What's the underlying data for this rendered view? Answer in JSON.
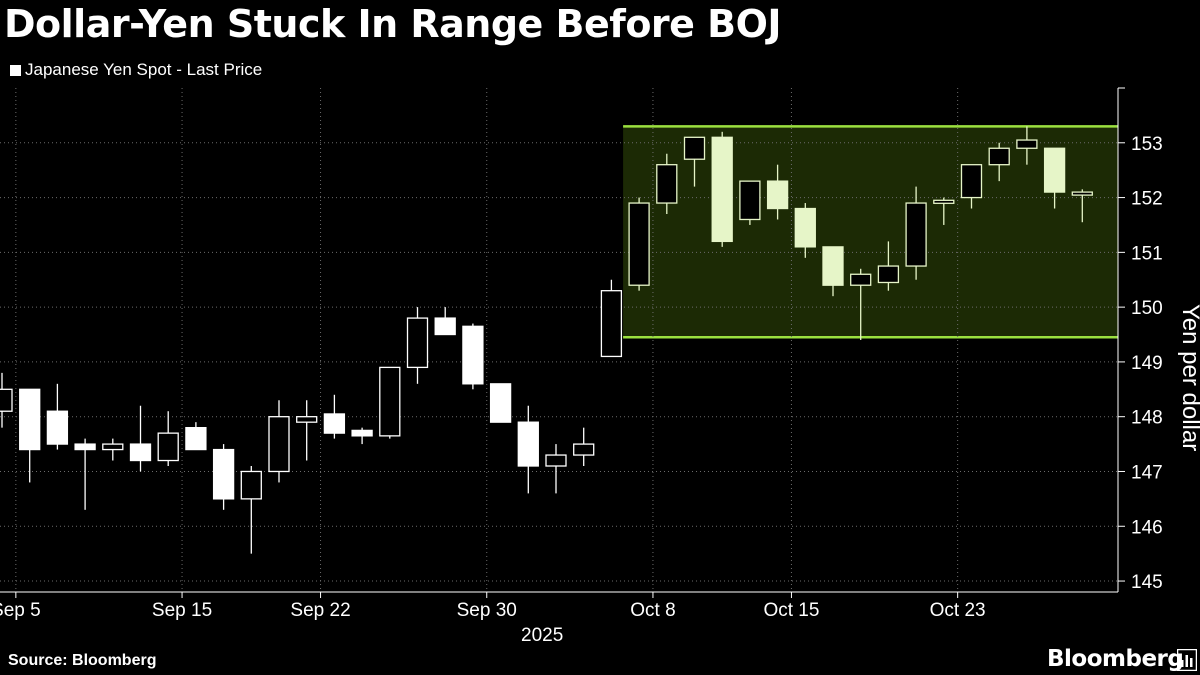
{
  "title": "Dollar-Yen Stuck In Range Before BOJ",
  "legend_label": "Japanese Yen Spot - Last Price",
  "source": "Source: Bloomberg",
  "brand": "Bloomberg",
  "colors": {
    "background": "#000000",
    "candle_fill": "#ffffff",
    "range_fill": "#1c2a05",
    "range_line": "#9be03f",
    "range_candle": "#e6f5c8",
    "grid": "#6b6b6b"
  },
  "chart_data": {
    "type": "candlestick",
    "title": "Dollar-Yen Stuck In Range Before BOJ",
    "ylabel": "Yen per dollar",
    "ylim": [
      144.8,
      154.0
    ],
    "yticks": [
      145,
      146,
      147,
      148,
      149,
      150,
      151,
      152,
      153
    ],
    "xticks": [
      {
        "label": "Sep 5",
        "index": 0.5
      },
      {
        "label": "Sep 15",
        "index": 6.5
      },
      {
        "label": "Sep 22",
        "index": 11.5
      },
      {
        "label": "Sep 30",
        "index": 17.5
      },
      {
        "label": "Oct 8",
        "index": 23.5
      },
      {
        "label": "Oct 15",
        "index": 28.5
      },
      {
        "label": "Oct 23",
        "index": 34.5
      }
    ],
    "year_label": "2025",
    "range_band": {
      "low": 149.45,
      "high": 153.3,
      "from_index": 23,
      "to_index": 39
    },
    "candles": [
      {
        "o": 148.1,
        "h": 148.8,
        "l": 147.8,
        "c": 148.5
      },
      {
        "o": 148.5,
        "h": 148.5,
        "l": 146.8,
        "c": 147.4
      },
      {
        "o": 148.1,
        "h": 148.6,
        "l": 147.4,
        "c": 147.5
      },
      {
        "o": 147.5,
        "h": 147.6,
        "l": 146.3,
        "c": 147.4
      },
      {
        "o": 147.4,
        "h": 147.6,
        "l": 147.2,
        "c": 147.5
      },
      {
        "o": 147.5,
        "h": 148.2,
        "l": 147.0,
        "c": 147.2
      },
      {
        "o": 147.2,
        "h": 148.1,
        "l": 147.1,
        "c": 147.7
      },
      {
        "o": 147.8,
        "h": 147.9,
        "l": 147.4,
        "c": 147.4
      },
      {
        "o": 147.4,
        "h": 147.5,
        "l": 146.3,
        "c": 146.5
      },
      {
        "o": 146.5,
        "h": 147.1,
        "l": 145.5,
        "c": 147.0
      },
      {
        "o": 147.0,
        "h": 148.3,
        "l": 146.8,
        "c": 148.0
      },
      {
        "o": 147.9,
        "h": 148.3,
        "l": 147.2,
        "c": 148.0
      },
      {
        "o": 148.05,
        "h": 148.4,
        "l": 147.6,
        "c": 147.7
      },
      {
        "o": 147.75,
        "h": 147.8,
        "l": 147.5,
        "c": 147.65
      },
      {
        "o": 147.65,
        "h": 148.9,
        "l": 147.6,
        "c": 148.9
      },
      {
        "o": 148.9,
        "h": 150.0,
        "l": 148.6,
        "c": 149.8
      },
      {
        "o": 149.8,
        "h": 150.0,
        "l": 149.5,
        "c": 149.5
      },
      {
        "o": 149.65,
        "h": 149.7,
        "l": 148.5,
        "c": 148.6
      },
      {
        "o": 148.6,
        "h": 148.6,
        "l": 147.9,
        "c": 147.9
      },
      {
        "o": 147.9,
        "h": 148.2,
        "l": 146.6,
        "c": 147.1
      },
      {
        "o": 147.1,
        "h": 147.5,
        "l": 146.6,
        "c": 147.3
      },
      {
        "o": 147.3,
        "h": 147.8,
        "l": 147.1,
        "c": 147.5
      },
      {
        "o": 149.1,
        "h": 150.5,
        "l": 149.1,
        "c": 150.3
      },
      {
        "o": 150.4,
        "h": 152.0,
        "l": 150.3,
        "c": 151.9
      },
      {
        "o": 151.9,
        "h": 152.8,
        "l": 151.7,
        "c": 152.6
      },
      {
        "o": 152.7,
        "h": 153.1,
        "l": 152.2,
        "c": 153.1
      },
      {
        "o": 153.1,
        "h": 153.2,
        "l": 151.1,
        "c": 151.2
      },
      {
        "o": 151.6,
        "h": 152.3,
        "l": 151.5,
        "c": 152.3
      },
      {
        "o": 152.3,
        "h": 152.6,
        "l": 151.6,
        "c": 151.8
      },
      {
        "o": 151.8,
        "h": 151.9,
        "l": 150.9,
        "c": 151.1
      },
      {
        "o": 151.1,
        "h": 151.1,
        "l": 150.2,
        "c": 150.4
      },
      {
        "o": 150.4,
        "h": 150.7,
        "l": 149.4,
        "c": 150.6
      },
      {
        "o": 150.45,
        "h": 151.2,
        "l": 150.3,
        "c": 150.75
      },
      {
        "o": 150.75,
        "h": 152.2,
        "l": 150.5,
        "c": 151.9
      },
      {
        "o": 151.9,
        "h": 152.0,
        "l": 151.5,
        "c": 151.95
      },
      {
        "o": 152.0,
        "h": 152.6,
        "l": 151.8,
        "c": 152.6
      },
      {
        "o": 152.6,
        "h": 153.0,
        "l": 152.3,
        "c": 152.9
      },
      {
        "o": 152.9,
        "h": 153.3,
        "l": 152.6,
        "c": 153.05
      },
      {
        "o": 152.9,
        "h": 152.9,
        "l": 151.8,
        "c": 152.1
      },
      {
        "o": 152.05,
        "h": 152.15,
        "l": 151.55,
        "c": 152.1
      }
    ]
  }
}
